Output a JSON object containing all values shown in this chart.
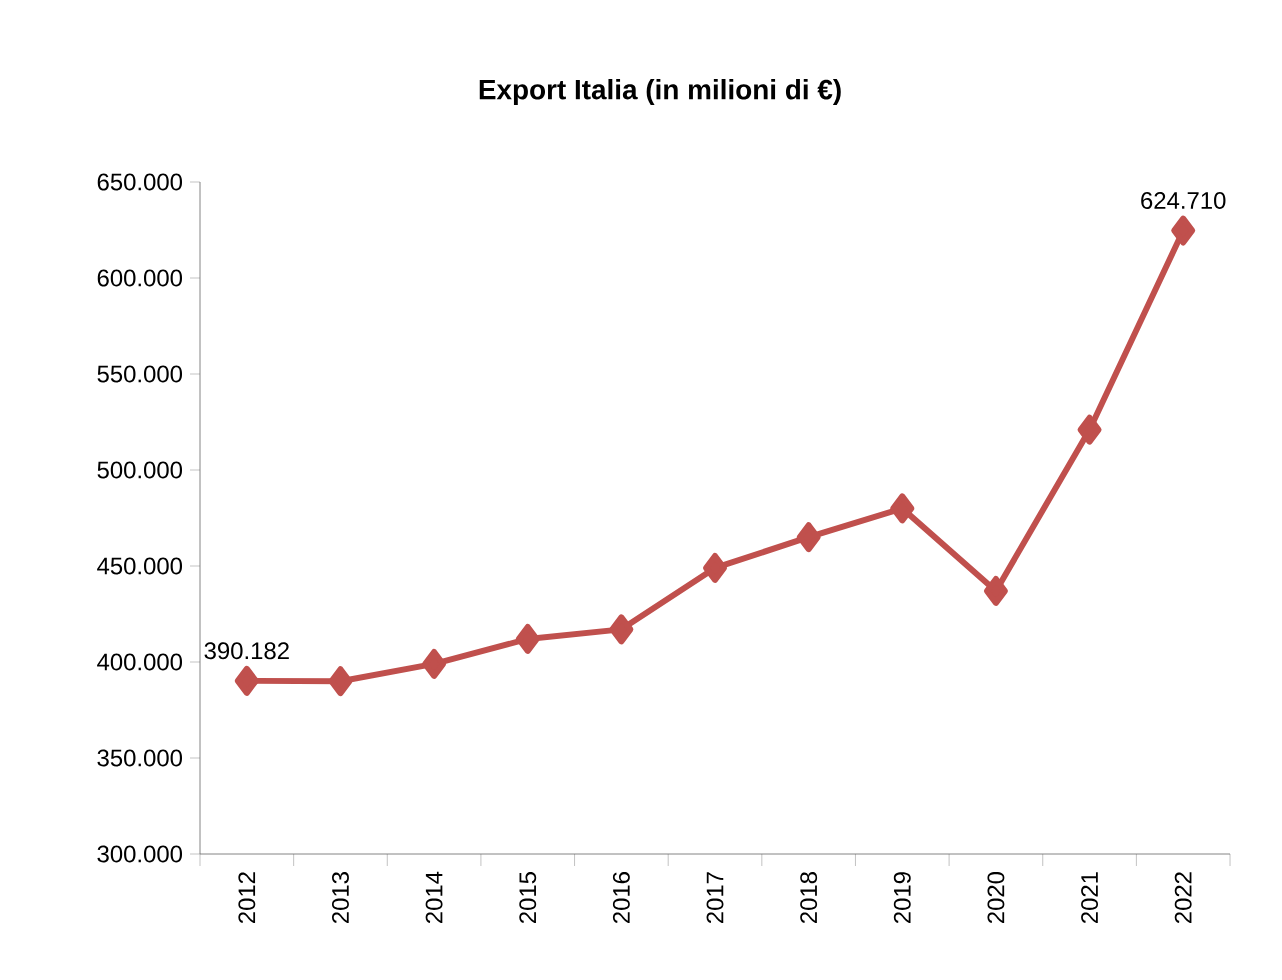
{
  "chart_data": {
    "type": "line",
    "title": "Export Italia (in milioni di €)",
    "categories": [
      "2012",
      "2013",
      "2014",
      "2015",
      "2016",
      "2017",
      "2018",
      "2019",
      "2020",
      "2021",
      "2022"
    ],
    "values": [
      390182,
      390000,
      399000,
      412000,
      417000,
      449000,
      465000,
      480000,
      437000,
      521000,
      624710
    ],
    "value_labels": [
      "390.182",
      null,
      null,
      null,
      null,
      null,
      null,
      null,
      null,
      null,
      "624.710"
    ],
    "color": "#c0504d",
    "marker": "diamond",
    "line_style": "solid",
    "ylim": [
      300000,
      650000
    ],
    "yticks": [
      {
        "value": 300000,
        "label": "300.000"
      },
      {
        "value": 350000,
        "label": "350.000"
      },
      {
        "value": 400000,
        "label": "400.000"
      },
      {
        "value": 450000,
        "label": "450.000"
      },
      {
        "value": 500000,
        "label": "500.000"
      },
      {
        "value": 550000,
        "label": "550.000"
      },
      {
        "value": 600000,
        "label": "600.000"
      },
      {
        "value": 650000,
        "label": "650.000"
      }
    ]
  }
}
